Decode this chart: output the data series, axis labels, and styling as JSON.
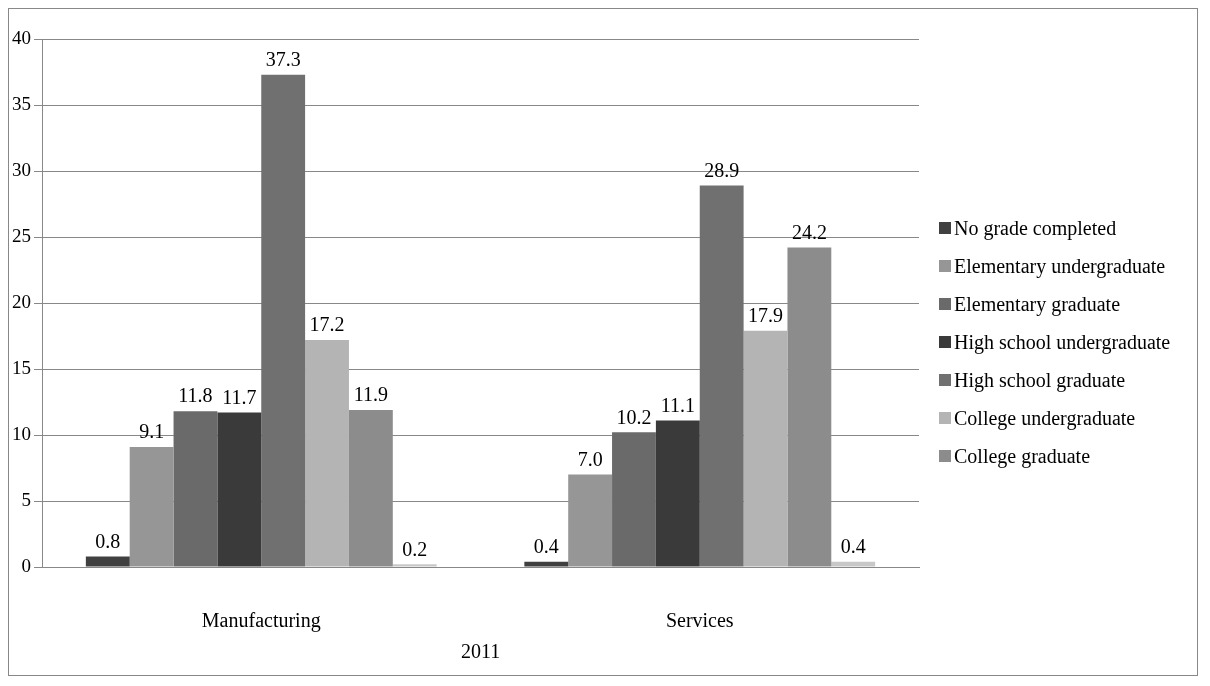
{
  "chart_data": {
    "type": "bar",
    "categories": [
      "Manufacturing",
      "Services"
    ],
    "xlabel": "2011",
    "ylim": [
      0,
      40
    ],
    "yticks": [
      0,
      5,
      10,
      15,
      20,
      25,
      30,
      35,
      40
    ],
    "grid": "y",
    "legend": "right",
    "series": [
      {
        "name": "No grade completed",
        "color": "#404040",
        "values": [
          0.8,
          0.4
        ],
        "value_labels": [
          "0.8",
          "0.4"
        ]
      },
      {
        "name": "Elementary undergraduate",
        "color": "#969696",
        "values": [
          9.1,
          7.0
        ],
        "value_labels": [
          "9.1",
          "7.0"
        ]
      },
      {
        "name": "Elementary graduate",
        "color": "#6a6a6a",
        "values": [
          11.8,
          10.2
        ],
        "value_labels": [
          "11.8",
          "10.2"
        ]
      },
      {
        "name": "High school undergraduate",
        "color": "#3a3a3a",
        "values": [
          11.7,
          11.1
        ],
        "value_labels": [
          "11.7",
          "11.1"
        ]
      },
      {
        "name": "High school graduate",
        "color": "#707070",
        "values": [
          37.3,
          28.9
        ],
        "value_labels": [
          "37.3",
          "28.9"
        ]
      },
      {
        "name": "College undergraduate",
        "color": "#b4b4b4",
        "values": [
          17.2,
          17.9
        ],
        "value_labels": [
          "17.2",
          "17.9"
        ]
      },
      {
        "name": "College graduate",
        "color": "#8c8c8c",
        "values": [
          11.9,
          24.2
        ],
        "value_labels": [
          "11.9",
          "24.2"
        ]
      },
      {
        "color": "#c8c8c8",
        "values": [
          0.2,
          0.4
        ],
        "value_labels": [
          "0.2",
          "0.4"
        ]
      }
    ]
  }
}
